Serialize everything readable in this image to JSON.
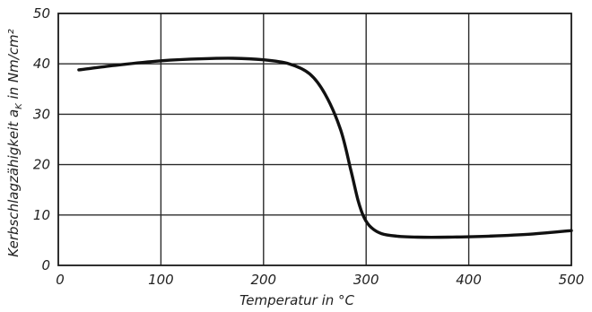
{
  "chart_data": {
    "type": "line",
    "title": "",
    "xlabel": "Temperatur in °C",
    "ylabel": {
      "prefix": "Kerbschlagzähigkeit  a",
      "subscript": "K",
      "unit": " in Nm/cm²"
    },
    "xlim": [
      0,
      500
    ],
    "ylim": [
      0,
      50
    ],
    "x_ticks": [
      0,
      100,
      200,
      300,
      400,
      500
    ],
    "y_ticks": [
      0,
      10,
      20,
      30,
      40,
      50
    ],
    "grid": true,
    "series": [
      {
        "x": [
          20,
          60,
          100,
          140,
          170,
          200,
          225,
          245,
          260,
          275,
          285,
          292,
          298,
          305,
          315,
          330,
          350,
          380,
          420,
          460,
          500
        ],
        "y": [
          38.8,
          39.8,
          40.6,
          41.0,
          41.1,
          40.8,
          40.0,
          38.0,
          34.0,
          27.0,
          19.0,
          13.0,
          9.5,
          7.5,
          6.3,
          5.8,
          5.6,
          5.6,
          5.8,
          6.2,
          6.9
        ]
      }
    ]
  }
}
